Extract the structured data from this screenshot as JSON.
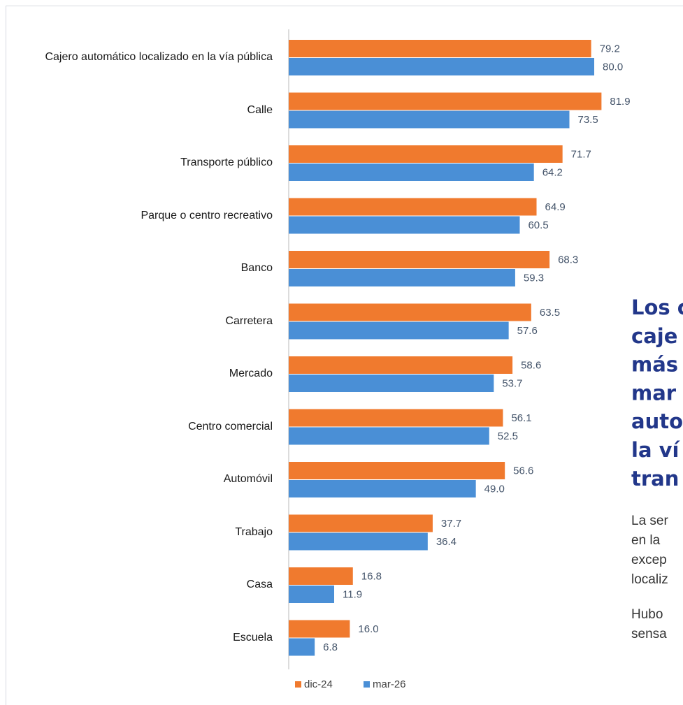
{
  "chart_data": {
    "type": "barh",
    "categories": [
      "Cajero automático localizado en la vía pública",
      "Calle",
      "Transporte público",
      "Parque o centro recreativo",
      "Banco",
      "Carretera",
      "Mercado",
      "Centro comercial",
      "Automóvil",
      "Trabajo",
      "Casa",
      "Escuela"
    ],
    "series": [
      {
        "name": "dic-24",
        "color": "#f07a2e",
        "values": [
          79.2,
          81.9,
          71.7,
          64.9,
          68.3,
          63.5,
          58.6,
          56.1,
          56.6,
          37.7,
          16.8,
          16.0
        ],
        "value_labels": [
          "79.2",
          "81.9",
          "71.7",
          "64.9",
          "68.3",
          "63.5",
          "58.6",
          "56.1",
          "56.6",
          "37.7",
          "16.8",
          "16.0"
        ]
      },
      {
        "name": "mar-26",
        "color": "#4a8fd6",
        "values": [
          80.0,
          73.5,
          64.2,
          60.5,
          59.3,
          57.6,
          53.7,
          52.5,
          49.0,
          36.4,
          11.9,
          6.8
        ],
        "value_labels": [
          "80.0",
          "73.5",
          "64.2",
          "60.5",
          "59.3",
          "57.6",
          "53.7",
          "52.5",
          "49.0",
          "36.4",
          "11.9",
          "6.8"
        ]
      }
    ],
    "xlim": [
      0,
      90
    ],
    "legend": "bottom"
  },
  "side_text": {
    "headline_lines": [
      "Los c",
      "caje",
      "más",
      "mar",
      "auto",
      "la ví",
      "tran"
    ],
    "body_lines": [
      "La ser",
      "en la",
      "excep",
      "localiz",
      "Hubo",
      "sensa"
    ]
  }
}
